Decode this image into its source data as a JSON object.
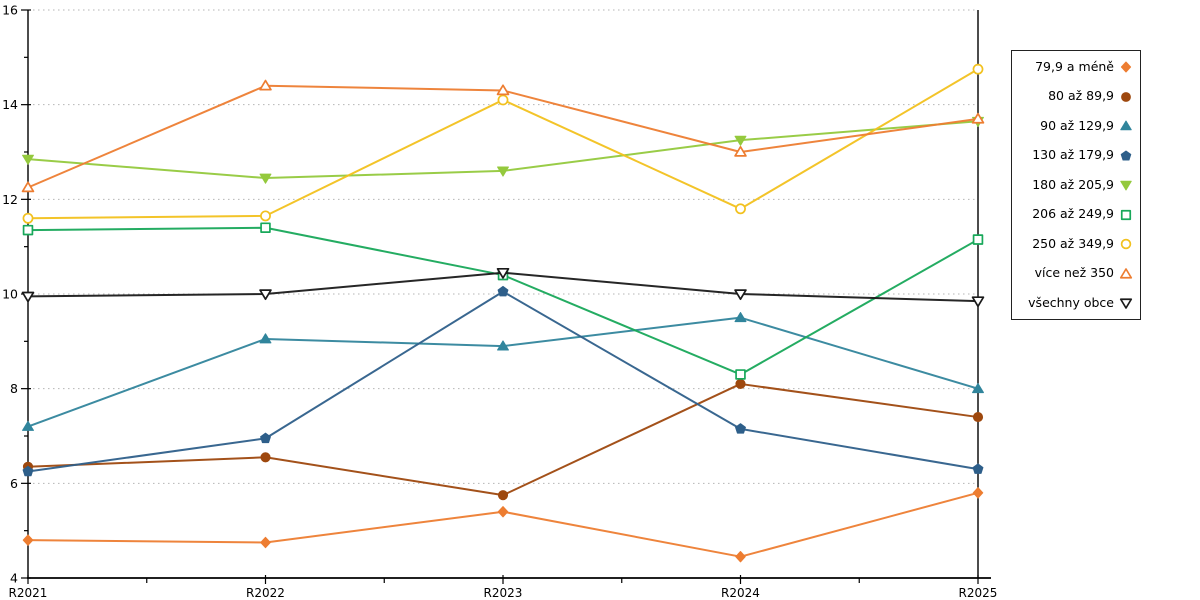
{
  "chart_data": {
    "type": "line",
    "title": "",
    "xlabel": "",
    "ylabel": "",
    "categories": [
      "R2021",
      "R2022",
      "R2023",
      "R2024",
      "R2025"
    ],
    "series": [
      {
        "name": "79,9 a méně",
        "color": "#ED7D31",
        "marker": "diamond",
        "fill": "filled",
        "values": [
          4.8,
          4.75,
          5.4,
          4.45,
          5.8
        ]
      },
      {
        "name": "80 až 89,9",
        "color": "#9E480E",
        "marker": "circle",
        "fill": "filled",
        "values": [
          6.35,
          6.55,
          5.75,
          8.1,
          7.4
        ]
      },
      {
        "name": "90 až 129,9",
        "color": "#31859C",
        "marker": "triangle-up",
        "fill": "filled",
        "values": [
          7.2,
          9.05,
          8.9,
          9.5,
          8.0
        ]
      },
      {
        "name": "130 až 179,9",
        "color": "#2E5F8A",
        "marker": "pentagon",
        "fill": "filled",
        "values": [
          6.25,
          6.95,
          10.05,
          7.15,
          6.3
        ]
      },
      {
        "name": "180 až 205,9",
        "color": "#94C93D",
        "marker": "triangle-down",
        "fill": "filled",
        "values": [
          12.85,
          12.45,
          12.6,
          13.25,
          13.65
        ]
      },
      {
        "name": "206 až 249,9",
        "color": "#18A85A",
        "marker": "square",
        "fill": "open",
        "values": [
          11.35,
          11.4,
          10.4,
          8.3,
          11.15
        ]
      },
      {
        "name": "250 až 349,9",
        "color": "#F2C11E",
        "marker": "circle",
        "fill": "open",
        "values": [
          11.6,
          11.65,
          14.1,
          11.8,
          14.75
        ]
      },
      {
        "name": "více než 350",
        "color": "#ED7D31",
        "marker": "triangle-up",
        "fill": "open",
        "values": [
          12.25,
          14.4,
          14.3,
          13.0,
          13.7
        ]
      },
      {
        "name": "všechny obce",
        "color": "#1A1A1A",
        "marker": "triangle-down",
        "fill": "open",
        "values": [
          9.95,
          10.0,
          10.45,
          10.0,
          9.85
        ]
      }
    ],
    "ylim": [
      4,
      16
    ],
    "y_major_tick_labels": [
      "4",
      "6",
      "8",
      "10",
      "12",
      "14",
      "16"
    ],
    "y_minor_tick_step": 1,
    "grid": "horizontal-dotted-at-major-ticks",
    "legend_position": "right",
    "colors": {
      "grid": "#b5b5b5",
      "axis": "#000000",
      "background": "#ffffff"
    }
  }
}
